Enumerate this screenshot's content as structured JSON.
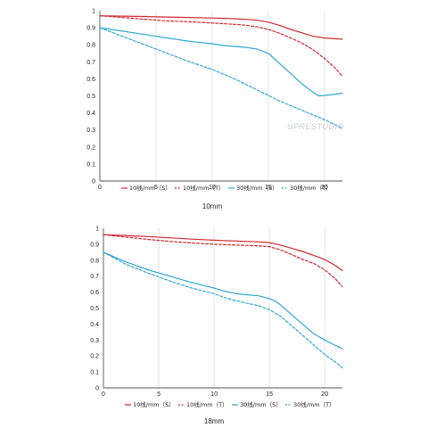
{
  "watermark": "UPRESTUDIO",
  "chart_data": [
    {
      "type": "line",
      "title": "10mm",
      "xlim": [
        0,
        21.6
      ],
      "ylim": [
        0,
        1
      ],
      "xticks": [
        "0",
        "5",
        "10",
        "15",
        "20"
      ],
      "yticks": [
        "0",
        "0.1",
        "0.2",
        "0.3",
        "0.4",
        "0.5",
        "0.6",
        "0.7",
        "0.8",
        "0.9",
        "1"
      ],
      "grid": "x-only",
      "legend_position": "bottom",
      "series": [
        {
          "name": "10线/mm（S）",
          "color": "#d0282e",
          "style": "solid",
          "x": [
            0,
            2,
            4,
            6,
            8,
            10,
            12,
            13,
            14,
            15,
            16,
            17,
            18,
            19,
            20,
            21,
            21.6
          ],
          "y": [
            0.97,
            0.968,
            0.966,
            0.963,
            0.96,
            0.957,
            0.953,
            0.949,
            0.944,
            0.933,
            0.914,
            0.89,
            0.87,
            0.85,
            0.84,
            0.835,
            0.833
          ]
        },
        {
          "name": "10线/mm（T）",
          "color": "#d0282e",
          "style": "dashed",
          "x": [
            0,
            2,
            4,
            6,
            8,
            10,
            12,
            13,
            14,
            15,
            16,
            17,
            18,
            19,
            20,
            21,
            21.6
          ],
          "y": [
            0.97,
            0.96,
            0.95,
            0.94,
            0.935,
            0.928,
            0.92,
            0.915,
            0.905,
            0.89,
            0.868,
            0.84,
            0.81,
            0.77,
            0.72,
            0.66,
            0.615
          ]
        },
        {
          "name": "30线/mm（S）",
          "color": "#2ea8d8",
          "style": "solid",
          "x": [
            0,
            2,
            4,
            6,
            8,
            10,
            11,
            12,
            13,
            14,
            15,
            15.5,
            16,
            17,
            18,
            19,
            19.5,
            20,
            21,
            21.6
          ],
          "y": [
            0.9,
            0.88,
            0.86,
            0.84,
            0.82,
            0.806,
            0.796,
            0.79,
            0.785,
            0.775,
            0.75,
            0.72,
            0.69,
            0.63,
            0.57,
            0.52,
            0.5,
            0.502,
            0.51,
            0.515
          ]
        },
        {
          "name": "30线/mm（T）",
          "color": "#2ea8d8",
          "style": "dashed",
          "x": [
            0,
            2,
            4,
            6,
            8,
            10,
            12,
            14,
            16,
            18,
            20,
            21.6
          ],
          "y": [
            0.9,
            0.85,
            0.8,
            0.75,
            0.7,
            0.655,
            0.6,
            0.535,
            0.47,
            0.415,
            0.36,
            0.31
          ]
        }
      ]
    },
    {
      "type": "line",
      "title": "18mm",
      "xlim": [
        0,
        21.6
      ],
      "ylim": [
        0,
        1
      ],
      "xticks": [
        "0",
        "5",
        "10",
        "15",
        "20"
      ],
      "yticks": [
        "0",
        "0.1",
        "0.2",
        "0.3",
        "0.4",
        "0.5",
        "0.6",
        "0.7",
        "0.8",
        "0.9",
        "1"
      ],
      "grid": "x-only",
      "legend_position": "bottom",
      "series": [
        {
          "name": "10线/mm（S）",
          "color": "#d0282e",
          "style": "solid",
          "x": [
            0,
            2,
            4,
            6,
            8,
            10,
            12,
            14,
            15,
            16,
            17,
            18,
            19,
            20,
            21,
            21.6
          ],
          "y": [
            0.96,
            0.955,
            0.948,
            0.94,
            0.932,
            0.925,
            0.92,
            0.915,
            0.91,
            0.895,
            0.875,
            0.855,
            0.83,
            0.805,
            0.765,
            0.735
          ]
        },
        {
          "name": "10线/mm（T）",
          "color": "#d0282e",
          "style": "dashed",
          "x": [
            0,
            2,
            4,
            6,
            8,
            10,
            12,
            14,
            15,
            16,
            17,
            18,
            19,
            20,
            21,
            21.6
          ],
          "y": [
            0.96,
            0.945,
            0.93,
            0.918,
            0.908,
            0.9,
            0.895,
            0.89,
            0.885,
            0.865,
            0.835,
            0.805,
            0.78,
            0.74,
            0.68,
            0.635
          ]
        },
        {
          "name": "30线/mm（S）",
          "color": "#2ea8d8",
          "style": "solid",
          "x": [
            0,
            2,
            4,
            6,
            8,
            10,
            11,
            12,
            13,
            14,
            15,
            15.5,
            16,
            17,
            18,
            19,
            20,
            21,
            21.6
          ],
          "y": [
            0.85,
            0.79,
            0.74,
            0.7,
            0.66,
            0.625,
            0.605,
            0.59,
            0.583,
            0.577,
            0.56,
            0.545,
            0.52,
            0.46,
            0.4,
            0.34,
            0.3,
            0.265,
            0.245
          ]
        },
        {
          "name": "30线/mm（T）",
          "color": "#2ea8d8",
          "style": "dashed",
          "x": [
            0,
            2,
            4,
            6,
            8,
            10,
            11,
            12,
            13,
            14,
            15,
            16,
            17,
            18,
            19,
            20,
            21,
            21.6
          ],
          "y": [
            0.85,
            0.775,
            0.72,
            0.67,
            0.625,
            0.59,
            0.565,
            0.545,
            0.53,
            0.515,
            0.49,
            0.45,
            0.39,
            0.33,
            0.27,
            0.21,
            0.16,
            0.125
          ]
        }
      ]
    }
  ]
}
